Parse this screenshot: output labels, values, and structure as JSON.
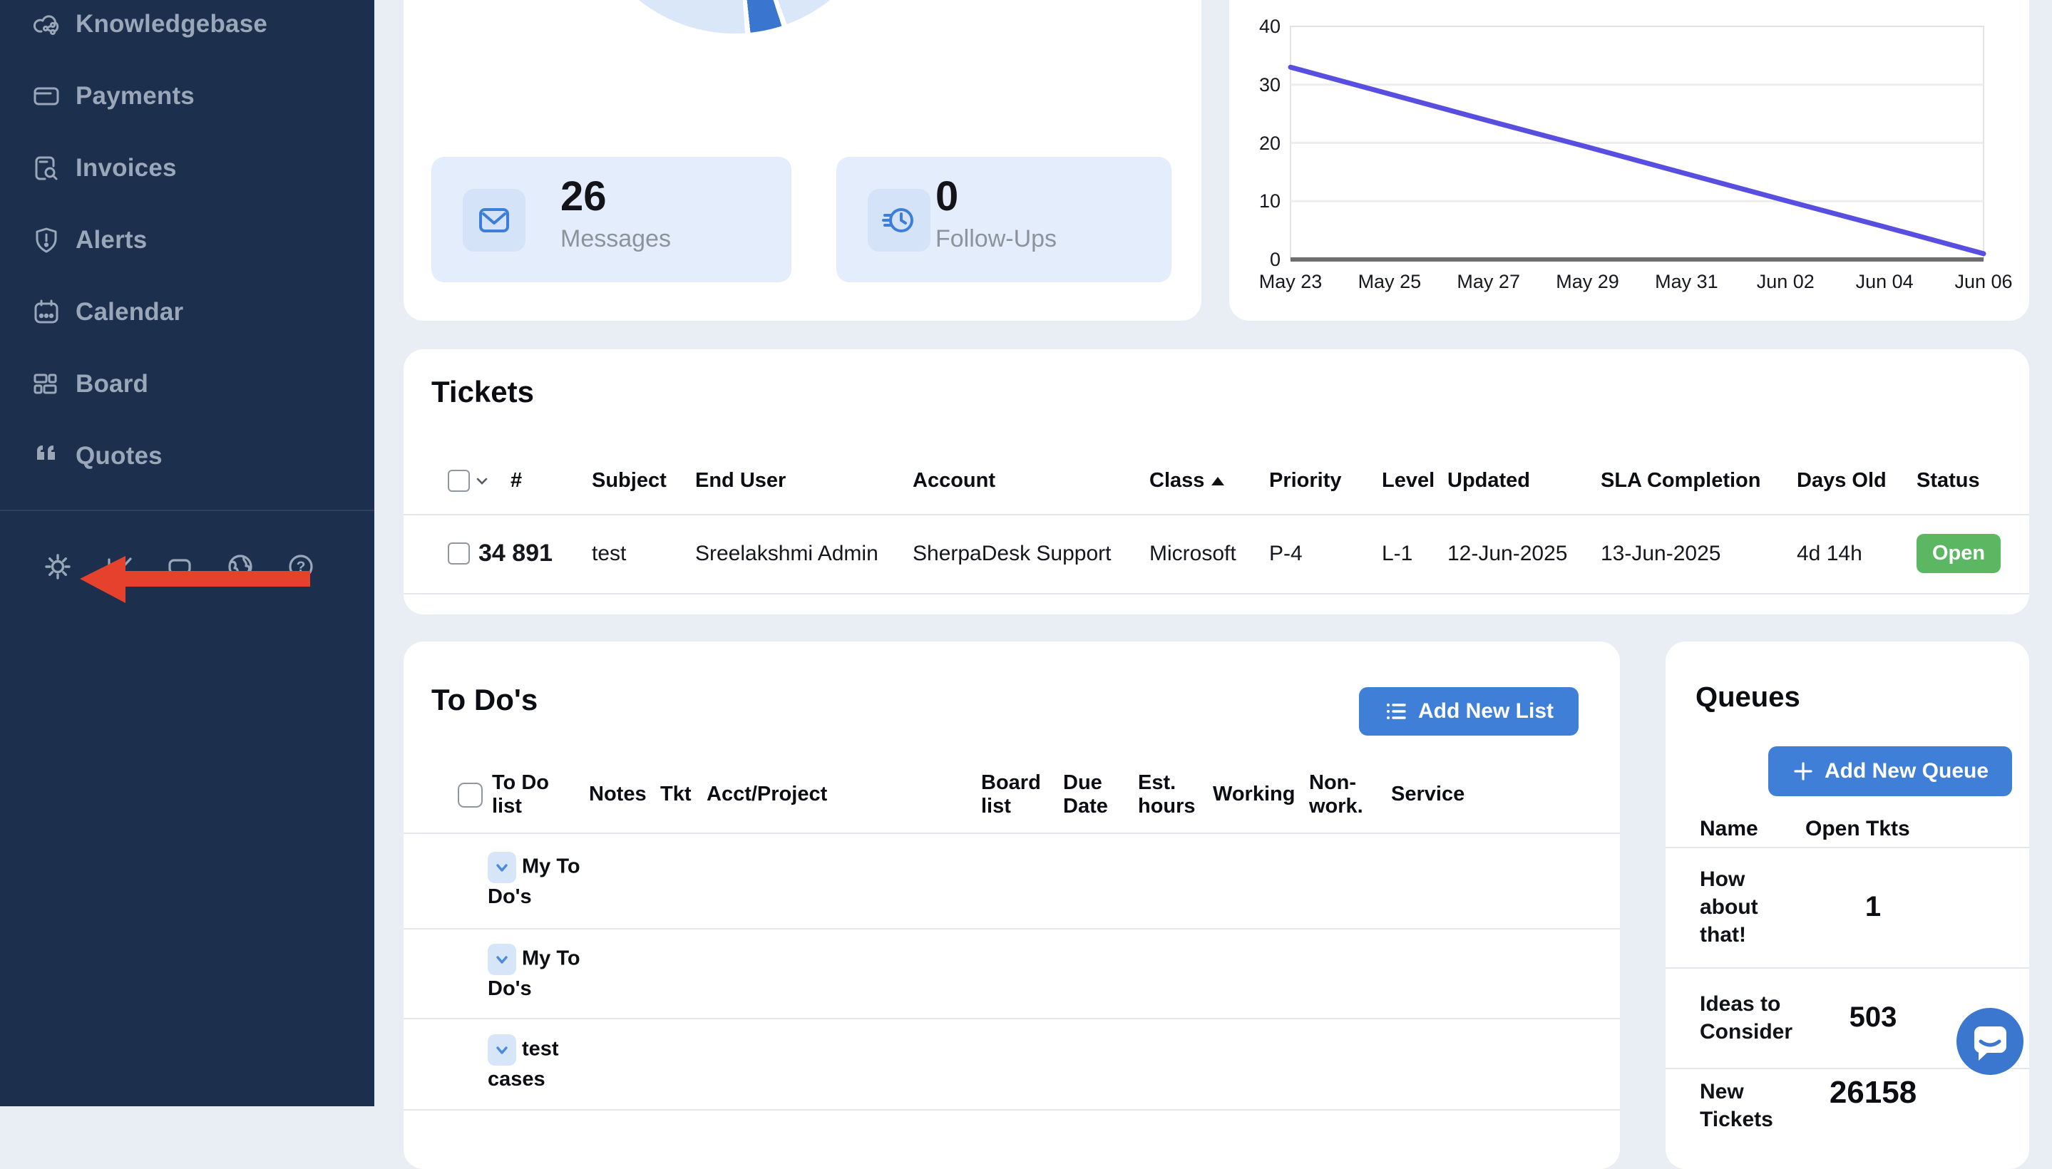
{
  "colors": {
    "sidebar_bg": "#1c2f4d",
    "sidebar_text": "#9aa7b9",
    "page_bg": "#e9edf4",
    "card_bg": "#ffffff",
    "accent_blue": "#3f7fd8",
    "stat_tile": "#e4edfb",
    "stat_icon": "#3d7edb",
    "open_badge": "#5cb763",
    "line_color": "#584ee0",
    "arrow_red": "#e6412d",
    "pie_light": "#d9e7f9",
    "pie_dark": "#3a76cf",
    "chat_blue": "#3b76cf"
  },
  "sidebar": {
    "items": [
      {
        "label": "Knowledgebase"
      },
      {
        "label": "Payments"
      },
      {
        "label": "Invoices"
      },
      {
        "label": "Alerts"
      },
      {
        "label": "Calendar"
      },
      {
        "label": "Board"
      },
      {
        "label": "Quotes"
      }
    ],
    "footer_icons": [
      "settings",
      "analytics",
      "card",
      "globe",
      "help"
    ],
    "annotation": "red arrow pointing at settings gear"
  },
  "overview": {
    "stats": [
      {
        "value": "26",
        "label": "Messages",
        "icon": "envelope"
      },
      {
        "value": "0",
        "label": "Follow-Ups",
        "icon": "clock"
      }
    ]
  },
  "tickets": {
    "title": "Tickets",
    "columns": [
      "#",
      "Subject",
      "End User",
      "Account",
      "Class",
      "Priority",
      "Level",
      "Updated",
      "SLA Completion",
      "Days Old",
      "Status"
    ],
    "sort_column": "Class",
    "row": {
      "number": "34 891",
      "subject": "test",
      "end_user": "Sreelakshmi Admin",
      "account": "SherpaDesk Support",
      "class": "Microsoft",
      "priority": "P-4",
      "level": "L-1",
      "updated": "12-Jun-2025",
      "sla": "13-Jun-2025",
      "days_old": "4d 14h",
      "status": "Open"
    }
  },
  "todos": {
    "title": "To Do's",
    "add_button": "Add New List",
    "columns": [
      "To Do list",
      "Notes",
      "Tkt",
      "Acct/Project",
      "Board list",
      "Due Date",
      "Est. hours",
      "Working",
      "Non-work.",
      "Service"
    ],
    "rows": [
      {
        "name": "My To Do's"
      },
      {
        "name": "My To Do's"
      },
      {
        "name": "test cases"
      }
    ]
  },
  "queues": {
    "title": "Queues",
    "add_button": "Add New Queue",
    "name_header": "Name",
    "open_header": "Open Tkts",
    "rows": [
      {
        "name": "How about that!",
        "open": "1"
      },
      {
        "name": "Ideas to Consider",
        "open": "503"
      },
      {
        "name": "New Tickets",
        "open": "26158"
      }
    ]
  },
  "chart_data": [
    {
      "type": "pie",
      "title": "",
      "note": "donut/pie partially visible at top edge of viewport",
      "slices": [
        {
          "label": "light",
          "pct": 96.1,
          "color": "#d9e7f9"
        },
        {
          "label": "dark",
          "pct": 3.9,
          "color": "#3a76cf"
        }
      ],
      "segments": [
        {
          "color": "#d9e7f9",
          "from": 0,
          "to": 160
        },
        {
          "color": "#ffffff",
          "from": 160,
          "to": 162
        },
        {
          "color": "#3a76cf",
          "from": 162,
          "to": 174
        },
        {
          "color": "#ffffff",
          "from": 174,
          "to": 176
        },
        {
          "color": "#d9e7f9",
          "from": 176,
          "to": 360
        }
      ]
    },
    {
      "type": "line",
      "title": "",
      "x": [
        "May 23",
        "May 25",
        "May 27",
        "May 29",
        "May 31",
        "Jun 02",
        "Jun 04",
        "Jun 06"
      ],
      "values": [
        33,
        28.4,
        23.8,
        19.3,
        14.7,
        10.1,
        5.6,
        1
      ],
      "yticks": [
        0,
        10,
        20,
        30,
        40
      ],
      "ylim": [
        0,
        40
      ],
      "line_color": "#584ee0",
      "grid": true,
      "legend_position": "none"
    }
  ]
}
